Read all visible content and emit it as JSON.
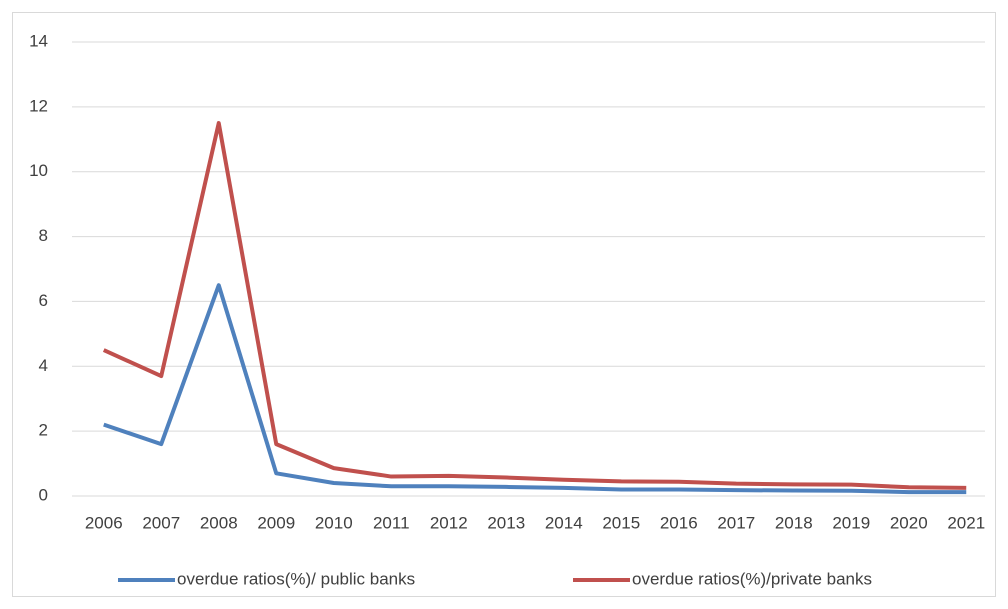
{
  "chart_data": {
    "type": "line",
    "categories": [
      "2006",
      "2007",
      "2008",
      "2009",
      "2010",
      "2011",
      "2012",
      "2013",
      "2014",
      "2015",
      "2016",
      "2017",
      "2018",
      "2019",
      "2020",
      "2021"
    ],
    "series": [
      {
        "name": "overdue ratios(%)/ public banks",
        "color": "#4f81bd",
        "values": [
          2.2,
          1.6,
          6.5,
          0.7,
          0.4,
          0.3,
          0.3,
          0.28,
          0.25,
          0.2,
          0.2,
          0.18,
          0.17,
          0.16,
          0.12,
          0.12
        ]
      },
      {
        "name": "overdue ratios(%)/private banks",
        "color": "#c0504d",
        "values": [
          4.5,
          3.7,
          11.5,
          1.6,
          0.86,
          0.6,
          0.62,
          0.57,
          0.5,
          0.45,
          0.44,
          0.38,
          0.36,
          0.35,
          0.27,
          0.25
        ]
      }
    ],
    "ylim": [
      0,
      14
    ],
    "yticks": [
      0,
      2,
      4,
      6,
      8,
      10,
      12,
      14
    ],
    "grid": true,
    "legend": "bottom"
  }
}
